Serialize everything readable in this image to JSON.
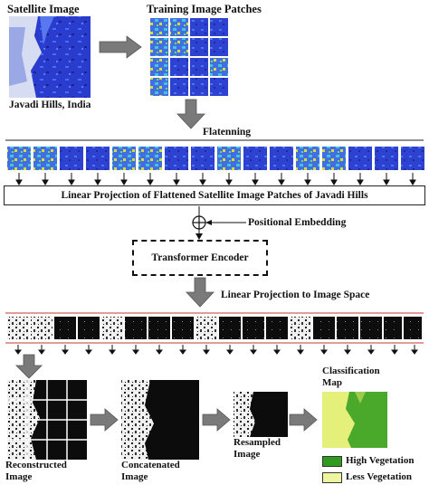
{
  "labels": {
    "satellite_image": "Satellite Image",
    "location": "Javadi Hills, India",
    "training_patches": "Training Image Patches",
    "flattening": "Flatenning",
    "linear_projection": "Linear Projection of Flattened Satellite Image Patches of Javadi Hills",
    "positional_embedding": "Positional Embedding",
    "transformer_encoder": "Transformer Encoder",
    "projection_to_image": "Linear Projection to Image Space",
    "reconstructed_1": "Reconstructed",
    "reconstructed_2": "Image",
    "concatenated_1": "Concatenated",
    "concatenated_2": "Image",
    "resampled_1": "Resampled",
    "resampled_2": "Image",
    "classification_1": "Classification",
    "classification_2": "Map"
  },
  "legend": [
    {
      "label": "High Vegetation",
      "color": "#2e9a1f"
    },
    {
      "label": "Less Vegetation",
      "color": "#eef5a0"
    }
  ],
  "colors": {
    "satellite_blue": "#2436c8",
    "satellite_light": "#c9d2ef",
    "patch_yellow": "#d6d83a",
    "patch_cyan": "#3fb6d9",
    "mask_black": "#0b0b0b",
    "mask_white": "#f2f2f2",
    "arrow_gray": "#7a7a7a",
    "red_line": "#c0392b",
    "map_green": "#4aa82a",
    "map_yellow": "#e5f07a"
  }
}
